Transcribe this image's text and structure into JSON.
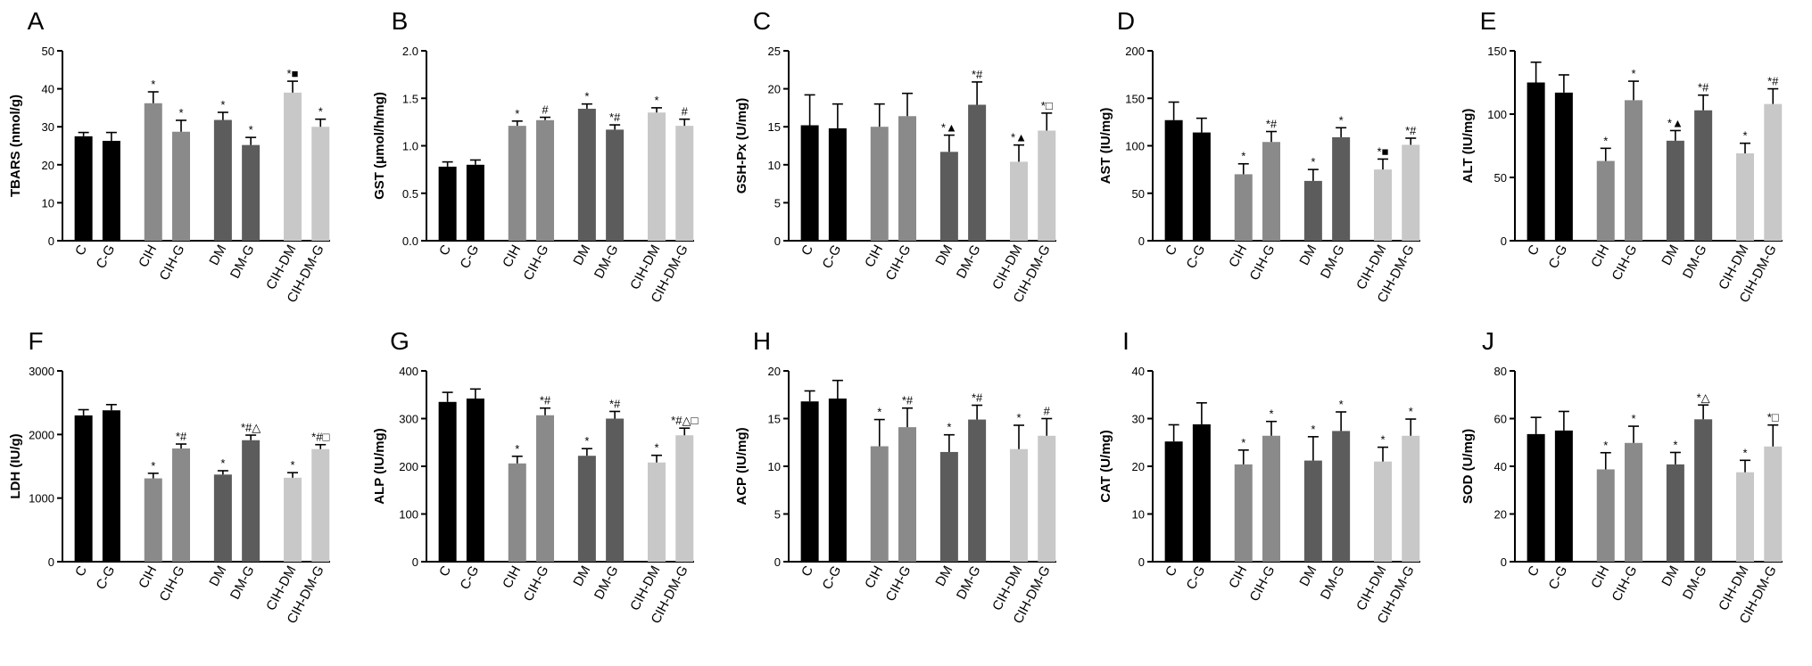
{
  "chart_data": [
    {
      "type": "bar",
      "panel_letter": "A",
      "ylabel": "TBARS (nmol/g)",
      "ylim": [
        0,
        50
      ],
      "yticks": [
        0,
        10,
        20,
        30,
        40,
        50
      ],
      "categories": [
        "C",
        "C-G",
        "CIH",
        "CIH-G",
        "DM",
        "DM-G",
        "CIH-DM",
        "CIH-DM-G"
      ],
      "values": [
        27.5,
        26.3,
        36.2,
        28.7,
        31.8,
        25.2,
        39,
        30
      ],
      "errors": [
        1,
        2.2,
        3,
        3,
        2,
        2,
        3,
        2
      ],
      "annotations": [
        "",
        "",
        "*",
        "*",
        "*",
        "*",
        "*■",
        "*"
      ]
    },
    {
      "type": "bar",
      "panel_letter": "B",
      "ylabel": "GST (μmol/h/mg)",
      "ylim": [
        0,
        2
      ],
      "yticks": [
        "0.0",
        "0.5",
        "1.0",
        "1.5",
        "2.0"
      ],
      "categories": [
        "C",
        "C-G",
        "CIH",
        "CIH-G",
        "DM",
        "DM-G",
        "CIH-DM",
        "CIH-DM-G"
      ],
      "values": [
        0.78,
        0.8,
        1.21,
        1.27,
        1.39,
        1.17,
        1.35,
        1.21
      ],
      "errors": [
        0.05,
        0.05,
        0.05,
        0.03,
        0.05,
        0.05,
        0.05,
        0.07
      ],
      "annotations": [
        "",
        "",
        "*",
        "#",
        "*",
        "*#",
        "*",
        "#"
      ]
    },
    {
      "type": "bar",
      "panel_letter": "C",
      "ylabel": "GSH-Px (U/mg)",
      "ylim": [
        0,
        25
      ],
      "yticks": [
        0,
        5,
        10,
        15,
        20,
        25
      ],
      "categories": [
        "C",
        "C-G",
        "CIH",
        "CIH-G",
        "DM",
        "DM-G",
        "CIH-DM",
        "CIH-DM-G"
      ],
      "values": [
        15.2,
        14.8,
        15,
        16.4,
        11.7,
        17.9,
        10.4,
        14.5
      ],
      "errors": [
        4,
        3.2,
        3,
        3,
        2.2,
        3,
        2.2,
        2.3
      ],
      "annotations": [
        "",
        "",
        "",
        "",
        "*▲",
        "*#",
        "*▲",
        "*□"
      ]
    },
    {
      "type": "bar",
      "panel_letter": "D",
      "ylabel": "AST (IU/mg)",
      "ylim": [
        0,
        200
      ],
      "yticks": [
        0,
        50,
        100,
        150,
        200
      ],
      "categories": [
        "C",
        "C-G",
        "CIH",
        "CIH-G",
        "DM",
        "DM-G",
        "CIH-DM",
        "CIH-DM-G"
      ],
      "values": [
        127,
        114,
        70,
        104,
        63,
        109,
        75,
        101
      ],
      "errors": [
        19,
        15,
        11,
        11,
        12,
        10,
        11,
        7
      ],
      "annotations": [
        "",
        "",
        "*",
        "*#",
        "*",
        "*",
        "*■",
        "*#"
      ]
    },
    {
      "type": "bar",
      "panel_letter": "E",
      "ylabel": "ALT (IU/mg)",
      "ylim": [
        0,
        150
      ],
      "yticks": [
        0,
        50,
        100,
        150
      ],
      "categories": [
        "C",
        "C-G",
        "CIH",
        "CIH-G",
        "DM",
        "DM-G",
        "CIH-DM",
        "CIH-DM-G"
      ],
      "values": [
        125,
        117,
        63,
        111,
        79,
        103,
        69,
        108
      ],
      "errors": [
        16,
        14,
        10,
        15,
        8,
        12,
        8,
        12
      ],
      "annotations": [
        "",
        "",
        "*",
        "*",
        "*▲",
        "*#",
        "*",
        "*#"
      ]
    },
    {
      "type": "bar",
      "panel_letter": "F",
      "ylabel": "LDH (IU/g)",
      "ylim": [
        0,
        3000
      ],
      "yticks": [
        0,
        1000,
        2000,
        3000
      ],
      "categories": [
        "C",
        "C-G",
        "CIH",
        "CIH-G",
        "DM",
        "DM-G",
        "CIH-DM",
        "CIH-DM-G"
      ],
      "values": [
        2300,
        2380,
        1310,
        1780,
        1370,
        1910,
        1320,
        1770
      ],
      "errors": [
        90,
        90,
        80,
        70,
        60,
        80,
        80,
        70
      ],
      "annotations": [
        "",
        "",
        "*",
        "*#",
        "*",
        "*#△",
        "*",
        "*#□"
      ]
    },
    {
      "type": "bar",
      "panel_letter": "G",
      "ylabel": "ALP (IU/mg)",
      "ylim": [
        0,
        400
      ],
      "yticks": [
        0,
        100,
        200,
        300,
        400
      ],
      "categories": [
        "C",
        "C-G",
        "CIH",
        "CIH-G",
        "DM",
        "DM-G",
        "CIH-DM",
        "CIH-DM-G"
      ],
      "values": [
        335,
        342,
        206,
        307,
        222,
        300,
        208,
        265
      ],
      "errors": [
        20,
        20,
        15,
        15,
        15,
        15,
        15,
        15
      ],
      "annotations": [
        "",
        "",
        "*",
        "*#",
        "*",
        "*#",
        "*",
        "*#△□"
      ]
    },
    {
      "type": "bar",
      "panel_letter": "H",
      "ylabel": "ACP (IU/mg)",
      "ylim": [
        0,
        20
      ],
      "yticks": [
        0,
        5,
        10,
        15,
        20
      ],
      "categories": [
        "C",
        "C-G",
        "CIH",
        "CIH-G",
        "DM",
        "DM-G",
        "CIH-DM",
        "CIH-DM-G"
      ],
      "values": [
        16.8,
        17.1,
        12.1,
        14.1,
        11.5,
        14.9,
        11.8,
        13.2
      ],
      "errors": [
        1.1,
        1.9,
        2.8,
        2,
        1.8,
        1.5,
        2.5,
        1.8
      ],
      "annotations": [
        "",
        "",
        "*",
        "*#",
        "*",
        "*#",
        "*",
        "#"
      ]
    },
    {
      "type": "bar",
      "panel_letter": "I",
      "ylabel": "CAT (U/mg)",
      "ylim": [
        0,
        40
      ],
      "yticks": [
        0,
        10,
        20,
        30,
        40
      ],
      "categories": [
        "C",
        "C-G",
        "CIH",
        "CIH-G",
        "DM",
        "DM-G",
        "CIH-DM",
        "CIH-DM-G"
      ],
      "values": [
        25.2,
        28.8,
        20.4,
        26.4,
        21.2,
        27.4,
        21,
        26.4
      ],
      "errors": [
        3.5,
        4.5,
        3,
        3,
        5,
        4,
        3,
        3.5
      ],
      "annotations": [
        "",
        "",
        "*",
        "*",
        "*",
        "*",
        "*",
        "*"
      ]
    },
    {
      "type": "bar",
      "panel_letter": "J",
      "ylabel": "SOD (U/mg)",
      "ylim": [
        0,
        80
      ],
      "yticks": [
        0,
        20,
        40,
        60,
        80
      ],
      "categories": [
        "C",
        "C-G",
        "CIH",
        "CIH-G",
        "DM",
        "DM-G",
        "CIH-DM",
        "CIH-DM-G"
      ],
      "values": [
        53.5,
        55,
        38.7,
        49.8,
        40.8,
        59.7,
        37.5,
        48.3
      ],
      "errors": [
        7,
        8,
        7,
        7,
        5,
        6,
        5,
        9
      ],
      "annotations": [
        "",
        "",
        "*",
        "*",
        "*",
        "*△",
        "*",
        "*□"
      ]
    }
  ],
  "colors": {
    "C": "#000000",
    "C-G": "#000000",
    "CIH": "#8a8a8a",
    "CIH-G": "#8a8a8a",
    "DM": "#5c5c5c",
    "DM-G": "#5c5c5c",
    "CIH-DM": "#c8c8c8",
    "CIH-DM-G": "#c8c8c8"
  }
}
